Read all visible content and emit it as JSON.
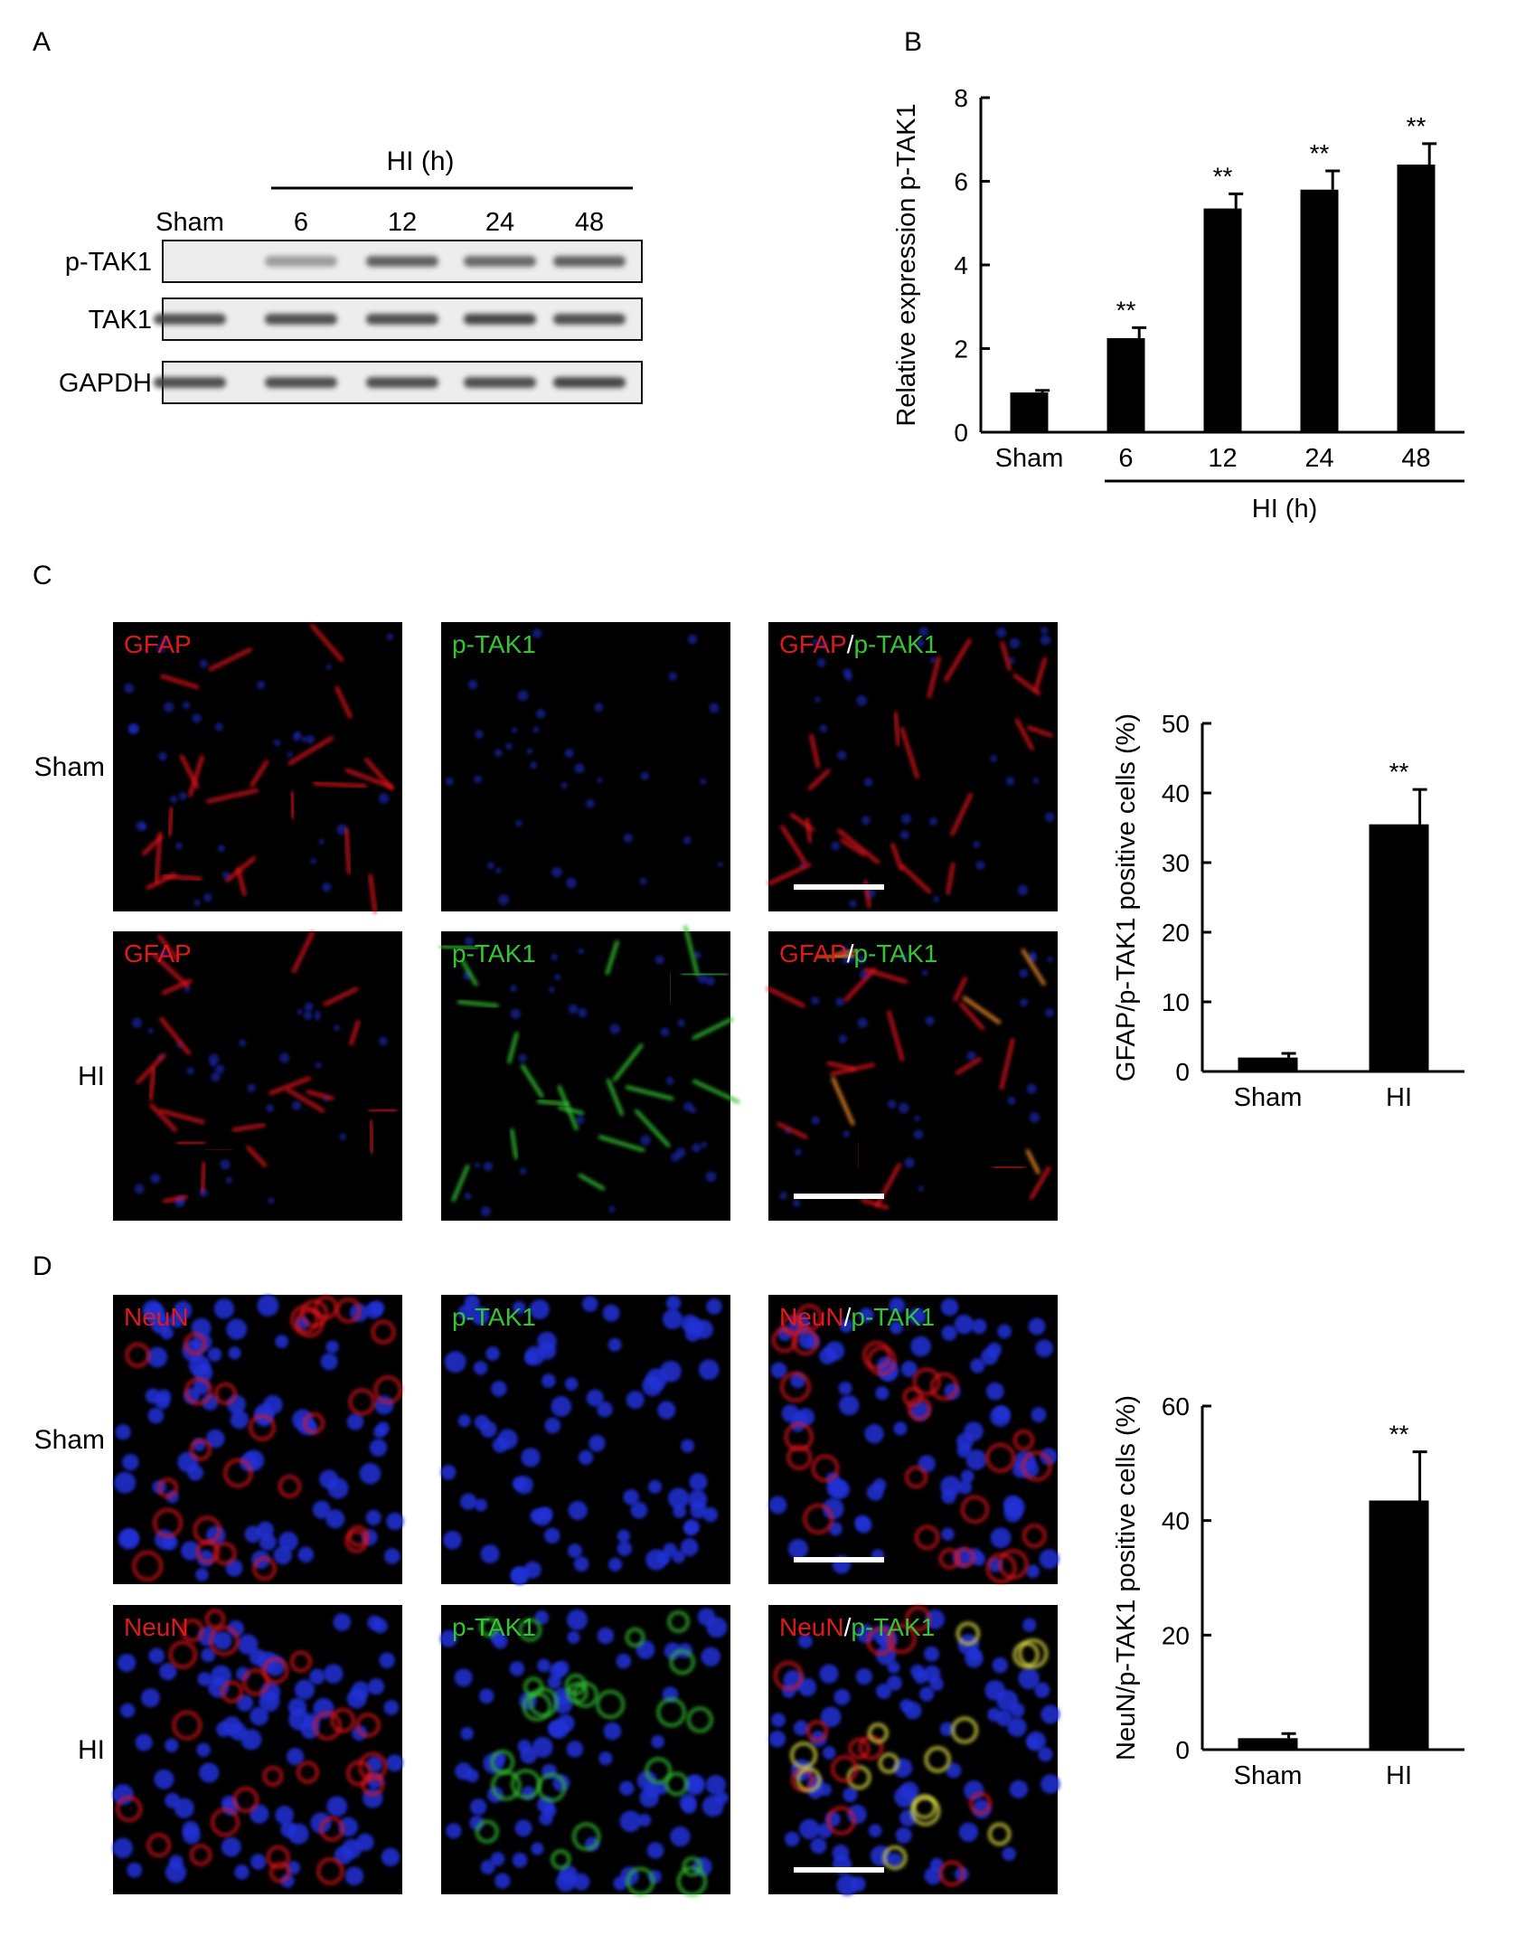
{
  "panels": {
    "a": {
      "letter": "A",
      "group_label": "HI (h)",
      "lanes": [
        "Sham",
        "6",
        "12",
        "24",
        "48"
      ],
      "rows": [
        {
          "label": "p-TAK1",
          "intensity": [
            0.0,
            0.45,
            0.8,
            0.75,
            0.8
          ]
        },
        {
          "label": "TAK1",
          "intensity": [
            0.9,
            0.9,
            0.9,
            0.95,
            0.9
          ]
        },
        {
          "label": "GAPDH",
          "intensity": [
            0.9,
            0.9,
            0.9,
            0.9,
            0.95
          ]
        }
      ]
    },
    "b": {
      "letter": "B"
    },
    "c": {
      "letter": "C",
      "row_labels": [
        "Sham",
        "HI"
      ],
      "marker": "GFAP",
      "target": "p-TAK1",
      "separator": "/"
    },
    "d": {
      "letter": "D",
      "row_labels": [
        "Sham",
        "HI"
      ],
      "marker": "NeuN",
      "target": "p-TAK1",
      "separator": "/"
    }
  },
  "colors": {
    "bar": "#000000",
    "marker_red": "#e0191b",
    "target_green": "#35c435",
    "nuclei_blue": "#2233d8",
    "merge_orange": "#f08a2a",
    "merge_yellow": "#e6e64a",
    "blot_band": "#3c3c3c"
  },
  "chart_data": [
    {
      "panel": "B",
      "type": "bar",
      "categories": [
        "Sham",
        "6",
        "12",
        "24",
        "48"
      ],
      "values": [
        0.95,
        2.25,
        5.35,
        5.8,
        6.4
      ],
      "errors": [
        0.05,
        0.25,
        0.35,
        0.45,
        0.5
      ],
      "significance": [
        "",
        "**",
        "**",
        "**",
        "**"
      ],
      "xlabel": "HI (h)",
      "ylabel": "Relative expression p-TAK1",
      "ylim": [
        0,
        8
      ],
      "yticks": [
        0,
        2,
        4,
        6,
        8
      ],
      "grid": false
    },
    {
      "panel": "C",
      "type": "bar",
      "categories": [
        "Sham",
        "HI"
      ],
      "values": [
        2.0,
        35.5
      ],
      "errors": [
        0.6,
        5.0
      ],
      "significance": [
        "",
        "**"
      ],
      "xlabel": "",
      "ylabel": "GFAP/p-TAK1 positive cells (%)",
      "ylim": [
        0,
        50
      ],
      "yticks": [
        0,
        10,
        20,
        30,
        40,
        50
      ],
      "grid": false
    },
    {
      "panel": "D",
      "type": "bar",
      "categories": [
        "Sham",
        "HI"
      ],
      "values": [
        2.0,
        43.5
      ],
      "errors": [
        0.8,
        8.5
      ],
      "significance": [
        "",
        "**"
      ],
      "xlabel": "",
      "ylabel": "NeuN/p-TAK1 positive cells (%)",
      "ylim": [
        0,
        60
      ],
      "yticks": [
        0,
        20,
        40,
        60
      ],
      "grid": false
    }
  ]
}
